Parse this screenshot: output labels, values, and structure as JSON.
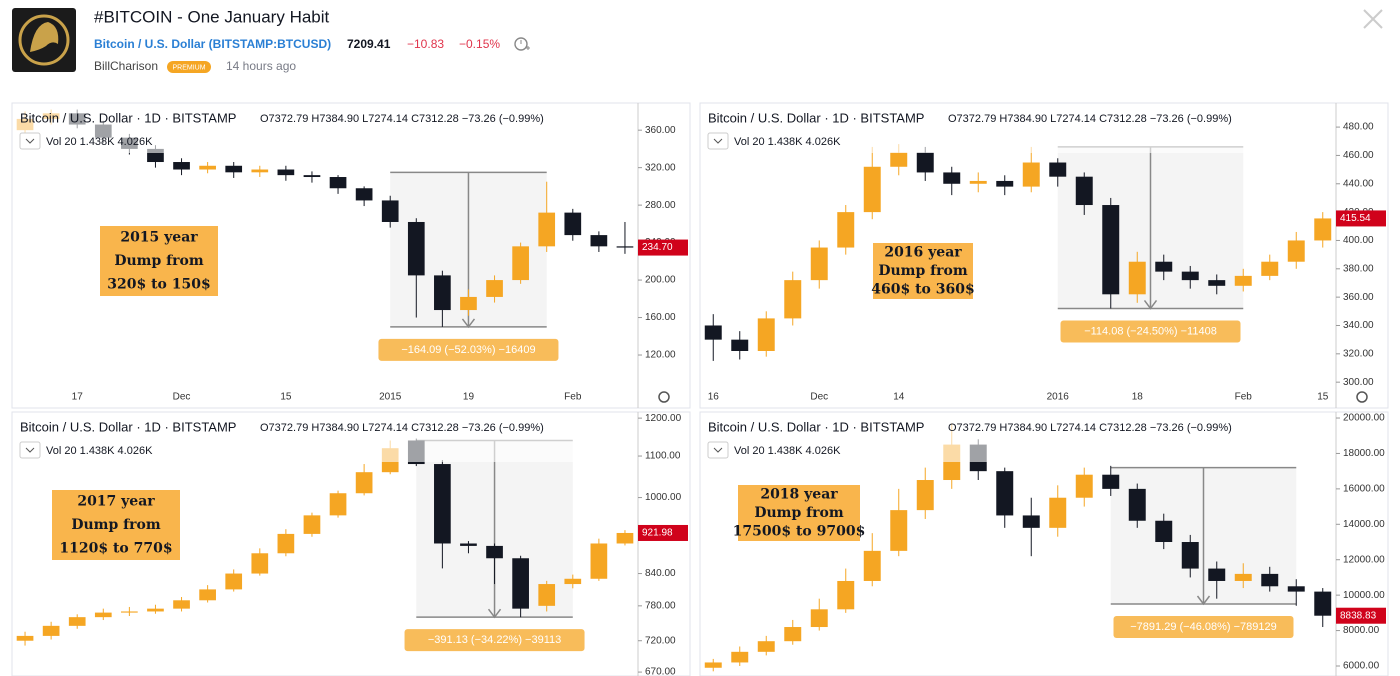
{
  "header": {
    "title": "#BITCOIN - One January Habit",
    "symbol": "Bitcoin / U.S. Dollar (BITSTAMP:BTCUSD)",
    "price": "7209.41",
    "change": "−10.83",
    "change_pct": "−0.15%",
    "author": "BillCharison",
    "badge": "PREMIUM",
    "time": "14 hours ago"
  },
  "chart_data": [
    {
      "type": "candlestick",
      "title": "Bitcoin / U.S. Dollar · 1D · BITSTAMP",
      "ohlc_text": "O7372.79 H7384.90 L7274.14 C7312.28 −73.26 (−0.99%)",
      "volume_text": "Vol 20 1.438K 4.026K",
      "up_color": "#f5a623",
      "down_color": "#131722",
      "categories": [
        null,
        null,
        "17",
        null,
        null,
        null,
        "Dec",
        null,
        null,
        null,
        "15",
        null,
        null,
        null,
        "2015",
        null,
        null,
        "19",
        null,
        null,
        null,
        "Feb",
        null,
        null
      ],
      "open": [
        360,
        372,
        378,
        366,
        352,
        340,
        326,
        318,
        322,
        315,
        318,
        312,
        310,
        298,
        285,
        262,
        205,
        168,
        182,
        200,
        236,
        272,
        248,
        236
      ],
      "high": [
        380,
        382,
        382,
        370,
        356,
        344,
        330,
        326,
        326,
        322,
        322,
        316,
        312,
        300,
        290,
        266,
        210,
        190,
        205,
        240,
        305,
        276,
        252,
        262
      ],
      "low": [
        354,
        366,
        362,
        346,
        334,
        320,
        312,
        314,
        309,
        310,
        306,
        304,
        292,
        279,
        256,
        160,
        150,
        162,
        176,
        196,
        230,
        242,
        230,
        228
      ],
      "close": [
        372,
        378,
        366,
        352,
        340,
        326,
        318,
        322,
        315,
        318,
        312,
        310,
        298,
        285,
        262,
        205,
        168,
        182,
        200,
        236,
        272,
        248,
        236,
        234.7
      ],
      "ylim": [
        88,
        389
      ],
      "yticks": [
        {
          "value": 120,
          "label": "120.00"
        },
        {
          "value": 160,
          "label": "160.00"
        },
        {
          "value": 200,
          "label": "200.00"
        },
        {
          "value": 240,
          "label": "240.00"
        },
        {
          "value": 280,
          "label": "280.00"
        },
        {
          "value": 320,
          "label": "320.00"
        },
        {
          "value": 360,
          "label": "360.00"
        }
      ],
      "last_label": "234.70",
      "measure": {
        "label": "−164.09 (−52.03%) −16409",
        "high": 315,
        "low": 150,
        "start": 14,
        "end": 20
      },
      "annotation": [
        "2015 year",
        "Dump from",
        "320$ to 150$"
      ]
    },
    {
      "type": "candlestick",
      "title": "Bitcoin / U.S. Dollar · 1D · BITSTAMP",
      "ohlc_text": "O7372.79 H7384.90 L7274.14 C7312.28 −73.26 (−0.99%)",
      "volume_text": "Vol 20 1.438K 4.026K",
      "up_color": "#f5a623",
      "down_color": "#131722",
      "categories": [
        "16",
        null,
        null,
        null,
        "Dec",
        null,
        null,
        "14",
        null,
        null,
        null,
        null,
        null,
        "2016",
        null,
        null,
        "18",
        null,
        null,
        null,
        "Feb",
        null,
        null,
        "15"
      ],
      "open": [
        340,
        330,
        322,
        345,
        372,
        395,
        420,
        452,
        462,
        448,
        440,
        442,
        438,
        455,
        445,
        425,
        362,
        385,
        378,
        372,
        368,
        375,
        385,
        400
      ],
      "high": [
        348,
        336,
        350,
        378,
        400,
        425,
        466,
        468,
        466,
        452,
        448,
        446,
        466,
        458,
        448,
        430,
        392,
        390,
        382,
        376,
        380,
        390,
        406,
        420
      ],
      "low": [
        315,
        316,
        318,
        340,
        366,
        390,
        415,
        446,
        442,
        432,
        434,
        432,
        434,
        438,
        418,
        352,
        356,
        372,
        366,
        362,
        364,
        372,
        380,
        395
      ],
      "close": [
        330,
        322,
        345,
        372,
        395,
        420,
        452,
        462,
        448,
        440,
        442,
        438,
        455,
        445,
        425,
        362,
        385,
        378,
        372,
        368,
        375,
        385,
        400,
        415.54
      ],
      "ylim": [
        298,
        497
      ],
      "yticks": [
        {
          "value": 300,
          "label": "300.00"
        },
        {
          "value": 320,
          "label": "320.00"
        },
        {
          "value": 340,
          "label": "340.00"
        },
        {
          "value": 360,
          "label": "360.00"
        },
        {
          "value": 380,
          "label": "380.00"
        },
        {
          "value": 400,
          "label": "400.00"
        },
        {
          "value": 420,
          "label": "420.00"
        },
        {
          "value": 440,
          "label": "440.00"
        },
        {
          "value": 460,
          "label": "460.00"
        },
        {
          "value": 480,
          "label": "480.00"
        }
      ],
      "last_label": "415.54",
      "measure": {
        "label": "−114.08 (−24.50%) −11408",
        "high": 466,
        "low": 352,
        "start": 13,
        "end": 20
      },
      "annotation": [
        "2016 year",
        "Dump from",
        "460$ to 360$"
      ]
    },
    {
      "type": "candlestick",
      "title": "Bitcoin / U.S. Dollar · 1D · BITSTAMP",
      "ohlc_text": "O7372.79 H7384.90 L7274.14 C7312.28 −73.26 (−0.99%)",
      "volume_text": "Vol 20 1.438K 4.026K",
      "up_color": "#f5a623",
      "down_color": "#131722",
      "log_scale": true,
      "open": [
        720,
        728,
        745,
        760,
        768,
        770,
        775,
        790,
        810,
        840,
        880,
        920,
        960,
        1010,
        1060,
        1140,
        1080,
        900,
        895,
        870,
        780,
        820,
        830,
        900
      ],
      "high": [
        735,
        752,
        765,
        775,
        778,
        782,
        796,
        818,
        848,
        890,
        930,
        966,
        1016,
        1080,
        1140,
        1145,
        1090,
        905,
        900,
        875,
        826,
        838,
        910,
        928
      ],
      "low": [
        712,
        722,
        740,
        755,
        762,
        766,
        770,
        786,
        806,
        836,
        874,
        914,
        955,
        1005,
        1055,
        1075,
        850,
        880,
        820,
        760,
        770,
        812,
        826,
        896
      ],
      "close": [
        728,
        745,
        760,
        768,
        770,
        775,
        790,
        810,
        840,
        880,
        920,
        960,
        1010,
        1060,
        1120,
        1080,
        900,
        895,
        870,
        775,
        820,
        830,
        900,
        921.98
      ],
      "ylim": [
        664,
        1217
      ],
      "yticks": [
        {
          "value": 670,
          "label": "670.00"
        },
        {
          "value": 720,
          "label": "720.00"
        },
        {
          "value": 780,
          "label": "780.00"
        },
        {
          "value": 840,
          "label": "840.00"
        },
        {
          "value": 1000,
          "label": "1000.00"
        },
        {
          "value": 1100,
          "label": "1100.00"
        },
        {
          "value": 1200,
          "label": "1200.00"
        }
      ],
      "last_label": "921.98",
      "measure": {
        "label": "−391.13 (−34.22%) −39113",
        "high": 1140,
        "low": 760,
        "start": 15,
        "end": 21
      },
      "annotation": [
        "2017 year",
        "Dump from",
        "1120$ to 770$"
      ]
    },
    {
      "type": "candlestick",
      "title": "Bitcoin / U.S. Dollar · 1D · BITSTAMP",
      "ohlc_text": "O7372.79 H7384.90 L7274.14 C7312.28 −73.26 (−0.99%)",
      "volume_text": "Vol 20 1.438K 4.026K",
      "up_color": "#f5a623",
      "down_color": "#131722",
      "open": [
        5900,
        6200,
        6800,
        7400,
        8200,
        9200,
        10800,
        12500,
        14800,
        16500,
        18500,
        17000,
        14500,
        13800,
        15500,
        16800,
        16000,
        14200,
        13000,
        11500,
        10800,
        11200,
        10500,
        10200
      ],
      "high": [
        6400,
        7100,
        7700,
        8600,
        9800,
        11500,
        13500,
        16000,
        17200,
        19700,
        18800,
        17200,
        15500,
        16200,
        17200,
        17300,
        16300,
        14600,
        13400,
        11900,
        11800,
        11600,
        10900,
        10400
      ],
      "low": [
        5700,
        6000,
        6600,
        7200,
        8000,
        9000,
        10500,
        12200,
        14300,
        16000,
        16500,
        13800,
        12200,
        13300,
        15000,
        15600,
        13800,
        12600,
        11000,
        9800,
        10400,
        10200,
        9400,
        8200
      ],
      "close": [
        6200,
        6800,
        7400,
        8200,
        9200,
        10800,
        12500,
        14800,
        16500,
        18500,
        17000,
        14500,
        13800,
        15500,
        16800,
        16000,
        14200,
        13000,
        11500,
        10800,
        11200,
        10500,
        10200,
        8838.83
      ],
      "ylim": [
        5435,
        20340
      ],
      "yticks": [
        {
          "value": 6000,
          "label": "6000.00"
        },
        {
          "value": 8000,
          "label": "8000.00"
        },
        {
          "value": 10000,
          "label": "10000.00"
        },
        {
          "value": 12000,
          "label": "12000.00"
        },
        {
          "value": 14000,
          "label": "14000.00"
        },
        {
          "value": 16000,
          "label": "16000.00"
        },
        {
          "value": 18000,
          "label": "18000.00"
        },
        {
          "value": 20000,
          "label": "20000.00"
        }
      ],
      "last_label": "8838.83",
      "measure": {
        "label": "−7891.29 (−46.08%) −789129",
        "high": 17200,
        "low": 9500,
        "start": 15,
        "end": 22
      },
      "annotation": [
        "2018 year",
        "Dump from",
        "17500$ to 9700$"
      ]
    }
  ]
}
